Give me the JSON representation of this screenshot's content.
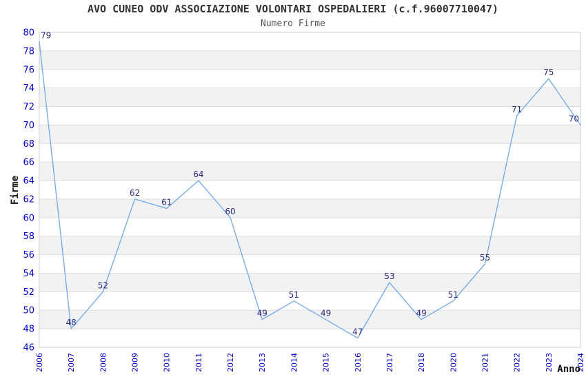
{
  "chart_data": {
    "type": "line",
    "title": "AVO CUNEO ODV ASSOCIAZIONE VOLONTARI OSPEDALIERI (c.f.96007710047)",
    "subtitle": "Numero Firme",
    "xlabel": "Anno",
    "ylabel": "Firme",
    "categories": [
      "2006",
      "2007",
      "2008",
      "2009",
      "2010",
      "2011",
      "2012",
      "2013",
      "2014",
      "2015",
      "2016",
      "2017",
      "2018",
      "2020",
      "2021",
      "2022",
      "2023",
      "2024"
    ],
    "series": [
      {
        "name": "Numero Firme",
        "values": [
          79,
          48,
          52,
          62,
          61,
          64,
          60,
          49,
          51,
          49,
          47,
          53,
          49,
          51,
          55,
          71,
          75,
          70
        ]
      }
    ],
    "ylim": [
      46,
      80
    ],
    "ytick_step": 2,
    "grid": true,
    "banded_background": true,
    "data_labels_visible": true,
    "legend_position": "none",
    "colors": {
      "line": "#78ace9",
      "data_label": "#2b2b80",
      "axis_tick_label": "#0000cd",
      "band": "#f2f2f2",
      "gridline": "#dedede",
      "plot_border": "#cccccc",
      "title": "#333333",
      "subtitle": "#555555",
      "background": "#ffffff"
    }
  }
}
